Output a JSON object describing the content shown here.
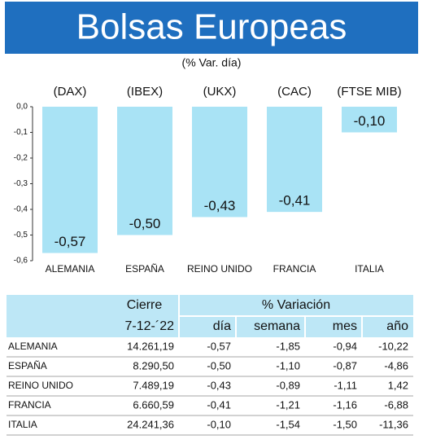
{
  "chart_data": {
    "type": "bar",
    "title": "Bolsas Europeas",
    "subtitle": "(% Var. día)",
    "index_labels": [
      "(DAX)",
      "(IBEX)",
      "(UKX)",
      "(CAC)",
      "(FTSE MIB)"
    ],
    "categories": [
      "ALEMANIA",
      "ESPAÑA",
      "REINO UNIDO",
      "FRANCIA",
      "ITALIA"
    ],
    "values": [
      -0.57,
      -0.5,
      -0.43,
      -0.41,
      -0.1
    ],
    "value_labels": [
      "-0,57",
      "-0,50",
      "-0,43",
      "-0,41",
      "-0,10"
    ],
    "color": "#a9e3f5",
    "ylim": [
      -0.6,
      0
    ],
    "yticks": [
      {
        "value": 0,
        "label": "0,0"
      },
      {
        "value": -0.1,
        "label": "-0,1"
      },
      {
        "value": -0.2,
        "label": "-0,2"
      },
      {
        "value": -0.3,
        "label": "-0,3"
      },
      {
        "value": -0.4,
        "label": "-0,4"
      },
      {
        "value": -0.5,
        "label": "-0,5"
      },
      {
        "value": -0.6,
        "label": "-0,6"
      }
    ]
  },
  "table": {
    "header1": [
      "Cierre",
      "% Variación"
    ],
    "header2": [
      "7-12-´22",
      "día",
      "semana",
      "mes",
      "año"
    ],
    "rows": [
      [
        "ALEMANIA",
        "14.261,19",
        "-0,57",
        "-1,85",
        "-0,94",
        "-10,22"
      ],
      [
        "ESPAÑA",
        "8.290,50",
        "-0,50",
        "-1,10",
        "-0,87",
        "-4,86"
      ],
      [
        "REINO UNIDO",
        "7.489,19",
        "-0,43",
        "-0,89",
        "-1,11",
        "1,42"
      ],
      [
        "FRANCIA",
        "6.660,59",
        "-0,41",
        "-1,21",
        "-1,16",
        "-6,88"
      ],
      [
        "ITALIA",
        "24.241,36",
        "-0,10",
        "-1,54",
        "-1,50",
        "-11,36"
      ]
    ]
  }
}
